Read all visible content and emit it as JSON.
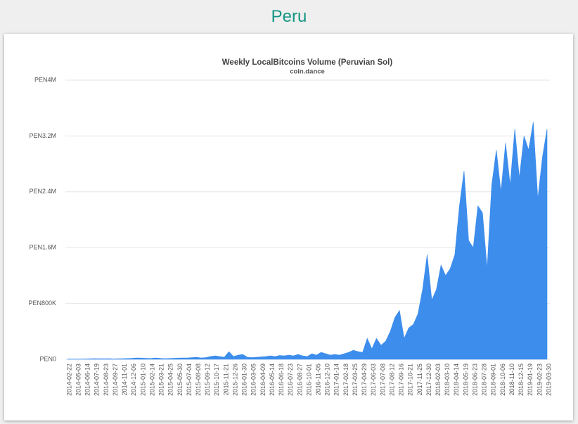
{
  "page": {
    "heading": "Peru"
  },
  "chart_data": {
    "type": "area",
    "title": "Weekly LocalBitcoins Volume (Peruvian Sol)",
    "subtitle": "coin.dance",
    "color": "#3d8ded",
    "grid": true,
    "categories": [
      "2014-02-22",
      null,
      "2014-05-03",
      null,
      "2014-06-14",
      null,
      "2014-07-19",
      null,
      "2014-08-23",
      null,
      "2014-09-27",
      null,
      "2014-11-01",
      null,
      "2014-12-06",
      null,
      "2015-01-10",
      null,
      "2015-02-14",
      null,
      "2015-03-21",
      null,
      "2015-04-25",
      null,
      "2015-05-30",
      null,
      "2015-07-04",
      null,
      "2015-08-08",
      null,
      "2015-09-12",
      null,
      "2015-10-17",
      null,
      "2015-11-21",
      null,
      "2015-12-26",
      null,
      "2016-01-30",
      null,
      "2016-03-05",
      null,
      "2016-04-09",
      null,
      "2016-05-14",
      null,
      "2016-06-18",
      null,
      "2016-07-23",
      null,
      "2016-08-27",
      null,
      "2016-10-01",
      null,
      "2016-11-05",
      null,
      "2016-12-10",
      null,
      "2017-01-14",
      null,
      "2017-02-18",
      null,
      "2017-03-25",
      null,
      "2017-04-29",
      null,
      "2017-06-03",
      null,
      "2017-07-08",
      null,
      "2017-08-12",
      null,
      "2017-09-16",
      null,
      "2017-10-21",
      null,
      "2017-11-25",
      null,
      "2017-12-30",
      null,
      "2018-02-03",
      null,
      "2018-03-10",
      null,
      "2018-04-14",
      null,
      "2018-05-19",
      null,
      "2018-06-23",
      null,
      "2018-07-28",
      null,
      "2018-09-01",
      null,
      "2018-10-06",
      null,
      "2018-11-10",
      null,
      "2018-12-15",
      null,
      "2019-01-19",
      null,
      "2019-02-23",
      null,
      "2019-03-30"
    ],
    "values": [
      5000,
      5000,
      5000,
      5000,
      6000,
      8000,
      10000,
      8000,
      8000,
      10000,
      6000,
      8000,
      10000,
      12000,
      15000,
      20000,
      18000,
      15000,
      12000,
      20000,
      15000,
      10000,
      12000,
      15000,
      18000,
      20000,
      20000,
      25000,
      30000,
      20000,
      25000,
      40000,
      50000,
      40000,
      30000,
      110000,
      40000,
      60000,
      70000,
      30000,
      25000,
      30000,
      35000,
      40000,
      50000,
      40000,
      55000,
      50000,
      60000,
      50000,
      70000,
      50000,
      40000,
      80000,
      60000,
      100000,
      80000,
      60000,
      70000,
      60000,
      80000,
      100000,
      130000,
      110000,
      100000,
      300000,
      150000,
      300000,
      200000,
      260000,
      400000,
      600000,
      700000,
      300000,
      450000,
      500000,
      650000,
      1000000,
      1500000,
      850000,
      1000000,
      1350000,
      1200000,
      1300000,
      1500000,
      2200000,
      2700000,
      1700000,
      1600000,
      2200000,
      2100000,
      1300000,
      2500000,
      3000000,
      2400000,
      3100000,
      2500000,
      3300000,
      2600000,
      3200000,
      3000000,
      3400000,
      2300000,
      2900000,
      3300000
    ],
    "ylim": [
      0,
      4000000
    ],
    "yticks": [
      {
        "value": 0,
        "label": "PEN0"
      },
      {
        "value": 800000,
        "label": "PEN800K"
      },
      {
        "value": 1600000,
        "label": "PEN1.6M"
      },
      {
        "value": 2400000,
        "label": "PEN2.4M"
      },
      {
        "value": 3200000,
        "label": "PEN3.2M"
      },
      {
        "value": 4000000,
        "label": "PEN4M"
      }
    ]
  }
}
